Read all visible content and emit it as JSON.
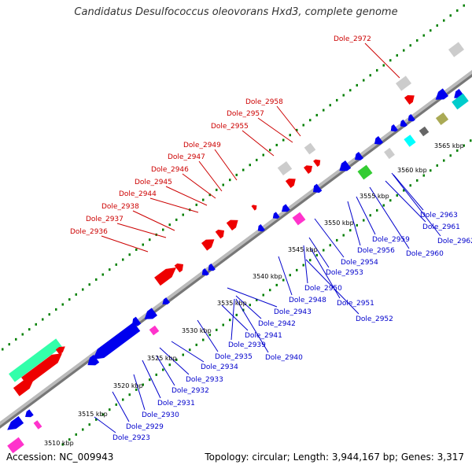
{
  "title": "Candidatus Desulfococcus oleovorans Hxd3, complete genome",
  "accession": "Accession: NC_009943",
  "summary": "Topology: circular; Length: 3,944,167 bp; Genes: 3,317",
  "colors": {
    "upper": "#cc0000",
    "lower": "#0000cc",
    "tick": "#008000",
    "backbone": "#999999"
  },
  "scale": [
    {
      "label": "3510 kbp"
    },
    {
      "label": "3515 kbp"
    },
    {
      "label": "3520 kbp"
    },
    {
      "label": "3525 kbp"
    },
    {
      "label": "3530 kbp"
    },
    {
      "label": "3535 kbp"
    },
    {
      "label": "3540 kbp"
    },
    {
      "label": "3545 kbp"
    },
    {
      "label": "3550 kbp"
    },
    {
      "label": "3555 kbp"
    },
    {
      "label": "3560 kbp"
    },
    {
      "label": "3565 kbp"
    }
  ],
  "upper_genes": [
    "Dole_2972",
    "Dole_2958",
    "Dole_2957",
    "Dole_2955",
    "Dole_2949",
    "Dole_2947",
    "Dole_2946",
    "Dole_2945",
    "Dole_2944",
    "Dole_2938",
    "Dole_2937",
    "Dole_2936"
  ],
  "lower_genes": [
    "Dole_2963",
    "Dole_2961",
    "Dole_2962",
    "Dole_2960",
    "Dole_2959",
    "Dole_2956",
    "Dole_2954",
    "Dole_2953",
    "Dole_2950",
    "Dole_2951",
    "Dole_2948",
    "Dole_2952",
    "Dole_2943",
    "Dole_2942",
    "Dole_2941",
    "Dole_2939",
    "Dole_2940",
    "Dole_2935",
    "Dole_2934",
    "Dole_2933",
    "Dole_2932",
    "Dole_2931",
    "Dole_2930",
    "Dole_2929",
    "Dole_2923"
  ]
}
